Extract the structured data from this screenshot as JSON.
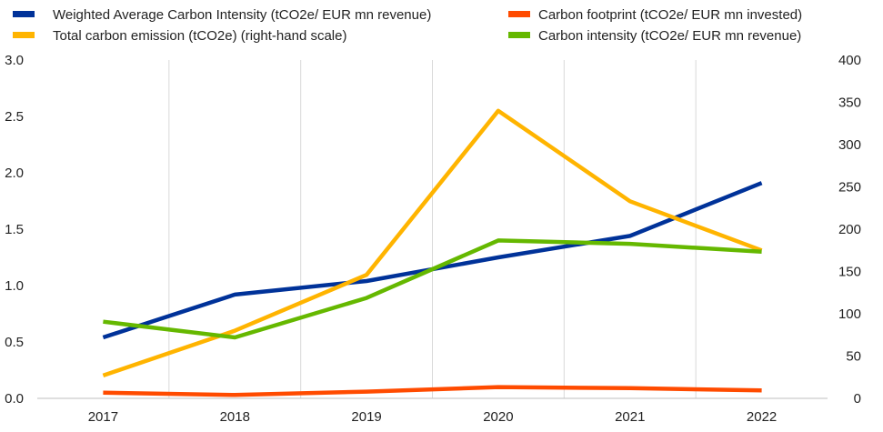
{
  "chart_data": {
    "type": "line",
    "categories": [
      "2017",
      "2018",
      "2019",
      "2020",
      "2021",
      "2022"
    ],
    "series": [
      {
        "name": "Weighted Average Carbon Intensity (tCO2e/ EUR mn revenue)",
        "axis": "left",
        "color": "#003299",
        "values": [
          0.54,
          0.92,
          1.04,
          1.25,
          1.44,
          1.91
        ]
      },
      {
        "name": "Carbon footprint (tCO2e/ EUR mn invested)",
        "axis": "left",
        "color": "#ff4b00",
        "values": [
          0.05,
          0.03,
          0.06,
          0.1,
          0.09,
          0.07
        ]
      },
      {
        "name": "Total carbon emission (tCO2e) (right-hand scale)",
        "axis": "right",
        "color": "#ffb400",
        "values": [
          27,
          80,
          146,
          340,
          233,
          175
        ]
      },
      {
        "name": "Carbon intensity (tCO2e/ EUR mn revenue)",
        "axis": "left",
        "color": "#65b800",
        "values": [
          0.68,
          0.54,
          0.89,
          1.4,
          1.37,
          1.3
        ]
      }
    ],
    "left_axis": {
      "ylim": [
        0,
        3
      ],
      "ticks": [
        "0.0",
        "0.5",
        "1.0",
        "1.5",
        "2.0",
        "2.5",
        "3.0"
      ]
    },
    "right_axis": {
      "ylim": [
        0,
        400
      ],
      "ticks": [
        "0",
        "50",
        "100",
        "150",
        "200",
        "250",
        "300",
        "350",
        "400"
      ]
    },
    "grid": "vertical",
    "legend_position": "top"
  }
}
